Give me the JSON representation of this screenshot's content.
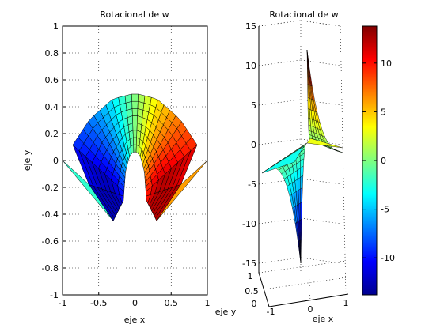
{
  "figure": {
    "background": "#ffffff",
    "colormap": "jet"
  },
  "chart_data": [
    {
      "type": "surface",
      "view": "top",
      "title": "Rotacional de w",
      "xlabel": "eje x",
      "ylabel": "eje y",
      "xlim": [
        -1,
        1
      ],
      "ylim": [
        -1,
        1
      ],
      "xticks": [
        -1,
        -0.5,
        0,
        0.5,
        1
      ],
      "xtick_labels": [
        "-1",
        "-0.5",
        "0",
        "0.5",
        "1"
      ],
      "yticks": [
        -1,
        -0.8,
        -0.6,
        -0.4,
        -0.2,
        0,
        0.2,
        0.4,
        0.6,
        0.8,
        1
      ],
      "ytick_labels": [
        "-1",
        "-0.8",
        "-0.6",
        "-0.4",
        "-0.2",
        "0",
        "0.2",
        "0.4",
        "0.6",
        "0.8",
        "1"
      ],
      "grid": true,
      "domain": {
        "outer_vertices": [
          [
            -1,
            0
          ],
          [
            -0.3,
            -0.45
          ],
          [
            0.3,
            -0.45
          ],
          [
            1,
            0
          ],
          [
            0,
            0.5
          ]
        ],
        "inner_vertices": [
          [
            -0.16,
            -0.3
          ],
          [
            0.16,
            -0.3
          ],
          [
            0,
            0.07
          ]
        ]
      }
    },
    {
      "type": "surface",
      "view": "3d",
      "title": "Rotacional de w",
      "xlabel": "eje x",
      "ylabel": "eje y",
      "zlim": [
        -15,
        15
      ],
      "zticks": [
        -15,
        -10,
        -5,
        0,
        5,
        10,
        15
      ],
      "ztick_labels": [
        "-15",
        "-10",
        "-5",
        "0",
        "5",
        "10",
        "15"
      ],
      "xticks": [
        -1,
        0,
        1
      ],
      "xtick_labels": [
        "-1",
        "0",
        "1"
      ],
      "yticks": [
        1,
        0.5,
        0
      ],
      "ytick_labels": [
        "1",
        "0.5",
        "0"
      ],
      "grid": true,
      "peak_max": 12,
      "peak_min": -15
    },
    {
      "type": "colorbar",
      "range": [
        -13.8,
        13.8
      ],
      "ticks": [
        -10,
        -5,
        0,
        5,
        10
      ],
      "tick_labels": [
        "-10",
        "-5",
        "0",
        "5",
        "10"
      ]
    }
  ]
}
